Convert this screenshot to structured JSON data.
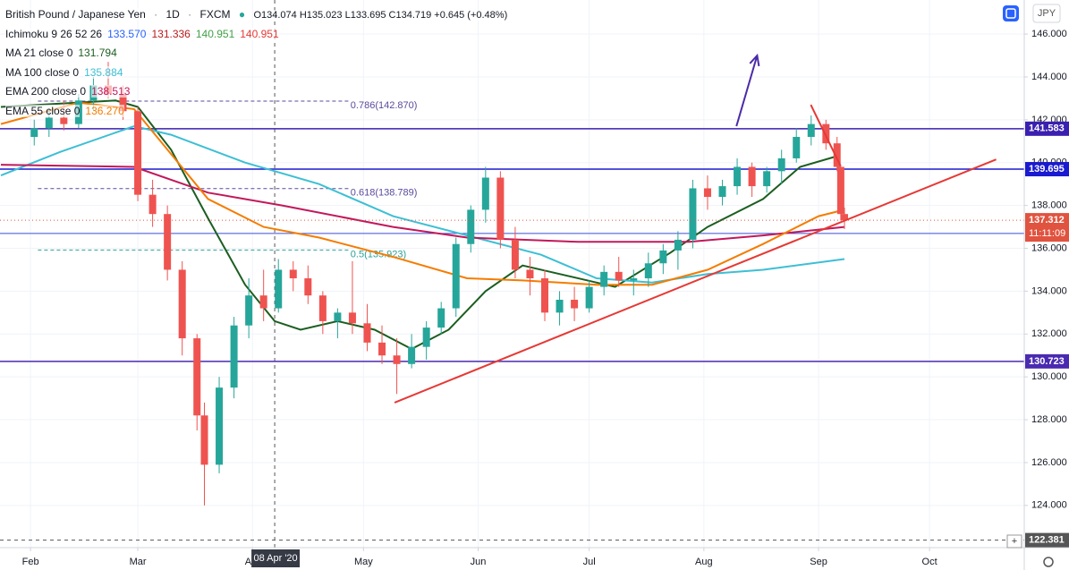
{
  "chart_data": {
    "type": "candlestick",
    "title": "British Pound / Japanese Yen",
    "interval": "1D",
    "source": "FXCM",
    "ohlc_header": "O134.074 H135.023 L133.695 C134.719 +0.645 (+0.48%)",
    "currency": "JPY",
    "up_color": "#26a69a",
    "down_color": "#ef5350",
    "x": [
      33,
      37,
      41,
      45,
      49,
      53,
      57,
      61,
      65,
      69,
      73,
      77,
      79,
      83,
      87,
      91,
      95,
      99,
      103,
      107,
      111,
      115,
      119,
      123,
      127,
      131,
      135,
      139,
      143,
      147,
      151,
      155,
      159,
      163,
      167,
      171,
      175,
      179,
      183,
      187,
      191,
      195,
      199,
      203,
      207,
      211,
      215,
      219,
      223,
      227,
      231,
      235,
      239,
      243,
      247,
      250,
      251,
      252
    ],
    "open": [
      141.2,
      141.6,
      142.1,
      141.8,
      142.9,
      143.6,
      143.2,
      142.4,
      138.5,
      137.6,
      135.0,
      131.8,
      128.2,
      125.9,
      129.5,
      132.4,
      133.8,
      133.2,
      135.0,
      134.6,
      133.8,
      132.6,
      133.0,
      132.5,
      131.6,
      131.0,
      130.6,
      131.4,
      132.3,
      133.2,
      136.2,
      137.8,
      139.3,
      136.4,
      135.0,
      134.6,
      133.0,
      133.6,
      133.2,
      134.2,
      134.9,
      134.5,
      134.6,
      135.3,
      135.9,
      136.4,
      138.8,
      138.4,
      138.9,
      139.8,
      138.9,
      139.6,
      140.2,
      141.2,
      141.8,
      140.9,
      139.8,
      137.6
    ],
    "high": [
      142.0,
      142.5,
      142.9,
      143.2,
      144.0,
      144.7,
      143.6,
      142.6,
      139.2,
      138.0,
      135.4,
      132.0,
      128.8,
      130.0,
      132.8,
      134.6,
      135.0,
      135.5,
      135.4,
      135.2,
      134.0,
      133.2,
      135.4,
      133.4,
      132.4,
      131.8,
      132.0,
      132.6,
      133.5,
      136.5,
      138.0,
      139.8,
      139.6,
      137.0,
      135.6,
      135.0,
      134.0,
      134.2,
      134.5,
      135.2,
      135.6,
      135.0,
      135.8,
      136.2,
      136.8,
      139.2,
      139.4,
      139.2,
      140.2,
      140.0,
      139.8,
      140.6,
      141.6,
      142.2,
      142.0,
      141.2,
      139.9,
      137.9
    ],
    "low": [
      140.8,
      141.2,
      141.5,
      141.6,
      142.4,
      143.0,
      142.0,
      138.2,
      137.0,
      134.5,
      131.0,
      127.5,
      124.0,
      125.5,
      129.0,
      131.8,
      132.6,
      133.0,
      134.0,
      133.4,
      132.0,
      131.8,
      132.0,
      131.2,
      130.6,
      129.2,
      130.4,
      130.8,
      132.0,
      132.8,
      135.8,
      137.2,
      136.0,
      134.6,
      133.8,
      132.6,
      132.4,
      132.6,
      133.0,
      133.8,
      134.2,
      133.8,
      134.2,
      134.8,
      135.0,
      136.0,
      137.8,
      138.0,
      138.5,
      138.4,
      138.6,
      139.0,
      140.0,
      140.8,
      140.6,
      139.6,
      137.3,
      136.9
    ],
    "close": [
      141.6,
      142.1,
      141.8,
      142.9,
      143.6,
      143.2,
      142.4,
      138.5,
      137.6,
      135.0,
      131.8,
      128.2,
      125.9,
      129.5,
      132.4,
      133.8,
      133.2,
      135.0,
      134.6,
      133.8,
      132.6,
      133.0,
      132.5,
      131.6,
      131.0,
      130.6,
      131.4,
      132.3,
      133.2,
      136.2,
      137.8,
      139.3,
      136.4,
      135.0,
      134.6,
      133.0,
      133.6,
      133.2,
      134.2,
      134.9,
      134.5,
      134.6,
      135.3,
      135.9,
      136.4,
      138.8,
      138.4,
      138.9,
      139.8,
      138.9,
      139.6,
      140.2,
      141.2,
      141.8,
      140.9,
      139.8,
      137.6,
      137.312
    ],
    "xlim": [
      23.75,
      300.6
    ],
    "ylim": [
      122.03,
      147.59
    ],
    "xticks": [
      {
        "value": 32,
        "label": "Feb"
      },
      {
        "value": 61,
        "label": "Mar"
      },
      {
        "value": 92,
        "label": "Apr"
      },
      {
        "value": 122,
        "label": "May"
      },
      {
        "value": 153,
        "label": "Jun"
      },
      {
        "value": 183,
        "label": "Jul"
      },
      {
        "value": 214,
        "label": "Aug"
      },
      {
        "value": 245,
        "label": "Sep"
      },
      {
        "value": 275,
        "label": "Oct"
      }
    ],
    "yticks": [
      {
        "value": 124,
        "label": "124.000"
      },
      {
        "value": 126,
        "label": "126.000"
      },
      {
        "value": 128,
        "label": "128.000"
      },
      {
        "value": 130,
        "label": "130.000"
      },
      {
        "value": 132,
        "label": "132.000"
      },
      {
        "value": 134,
        "label": "134.000"
      },
      {
        "value": 136,
        "label": "136.000"
      },
      {
        "value": 138,
        "label": "138.000"
      },
      {
        "value": 140,
        "label": "140.000"
      },
      {
        "value": 142,
        "label": "142.000"
      },
      {
        "value": 144,
        "label": "144.000"
      },
      {
        "value": 146,
        "label": "146.000"
      }
    ],
    "grid": true,
    "indicators": [
      {
        "name": "Ichimoku 9 26 52 26",
        "value_texts": [
          "133.570",
          "131.336",
          "140.951",
          "140.951"
        ],
        "value_colors": [
          "#2962ff",
          "#b71c1c",
          "#43a047",
          "#e53935"
        ]
      },
      {
        "name": "MA 21 close 0",
        "value_texts": [
          "131.794"
        ],
        "value_colors": [
          "#1b5e20"
        ],
        "color": "#1b5e20",
        "x": [
          24,
          55,
          61,
          70,
          80,
          90,
          98,
          105,
          115,
          125,
          135,
          145,
          155,
          165,
          175,
          190,
          205,
          215,
          230,
          240,
          250
        ],
        "values": [
          142.6,
          142.9,
          142.6,
          140.6,
          137.4,
          134.3,
          132.6,
          132.2,
          132.6,
          132.2,
          131.3,
          132.2,
          134.0,
          135.2,
          134.8,
          134.2,
          135.8,
          137.0,
          138.3,
          139.8,
          140.3
        ]
      },
      {
        "name": "MA 100 close 0",
        "value_texts": [
          "135.884"
        ],
        "value_colors": [
          "#3dbfd4"
        ],
        "color": "#3dbfd4",
        "x": [
          24,
          40,
          60,
          70,
          90,
          110,
          130,
          150,
          170,
          185,
          200,
          215,
          230,
          252
        ],
        "values": [
          139.4,
          140.5,
          141.7,
          141.3,
          140.0,
          139.0,
          137.5,
          136.6,
          135.7,
          134.6,
          134.4,
          134.8,
          135.0,
          135.5
        ]
      },
      {
        "name": "EMA 200 close 0",
        "value_texts": [
          "138.513"
        ],
        "value_colors": [
          "#c2185b"
        ],
        "color": "#c2185b",
        "x": [
          24,
          60,
          80,
          100,
          130,
          150,
          180,
          210,
          230,
          252
        ],
        "values": [
          139.9,
          139.8,
          138.6,
          138.0,
          137.0,
          136.5,
          136.3,
          136.3,
          136.6,
          137.0
        ]
      },
      {
        "name": "EMA 55 close 0",
        "value_texts": [
          "136.270"
        ],
        "value_colors": [
          "#f57c00"
        ],
        "color": "#f57c00",
        "x": [
          24,
          45,
          60,
          70,
          80,
          95,
          110,
          130,
          150,
          165,
          185,
          200,
          215,
          230,
          245,
          252
        ],
        "values": [
          141.8,
          142.8,
          142.5,
          140.4,
          138.3,
          137.0,
          136.5,
          135.6,
          134.6,
          134.5,
          134.3,
          134.3,
          135.0,
          136.2,
          137.5,
          137.8
        ]
      }
    ],
    "levels": [
      {
        "value": 141.583,
        "color": "#3a1fb0"
      },
      {
        "value": 139.695,
        "color": "#1a1ad0"
      },
      {
        "value": 136.693,
        "color": "#3b4fd8"
      },
      {
        "value": 130.723,
        "color": "#4a2ab0"
      },
      {
        "value": 122.381,
        "color": "#555555"
      }
    ],
    "last_price": 137.312,
    "last_price_color": "#e0533f",
    "countdown": "11:11:09",
    "fib_levels": [
      {
        "label": "0.786(142.870)",
        "value": 142.87,
        "x": [
          34,
          118
        ],
        "color": "#5b4a9c"
      },
      {
        "label": "0.618(138.789)",
        "value": 138.789,
        "x": [
          34,
          118
        ],
        "color": "#5b4a9c"
      },
      {
        "label": "0.5(135.923)",
        "value": 135.923,
        "x": [
          34,
          118
        ],
        "color": "#2aa198"
      }
    ],
    "trendlines": [
      {
        "x": [
          130.4,
          293
        ],
        "values": [
          128.8,
          140.15
        ],
        "color": "#e53935"
      },
      {
        "x": [
          242.9,
          250.9
        ],
        "values": [
          142.7,
          139.86
        ],
        "color": "#e53935"
      }
    ],
    "arrow": {
      "x": [
        222.8,
        228.4
      ],
      "values": [
        141.7,
        145.0
      ],
      "color": "#4b2aa8"
    },
    "crosshair": {
      "x": 98,
      "label": "08 Apr '20"
    }
  }
}
